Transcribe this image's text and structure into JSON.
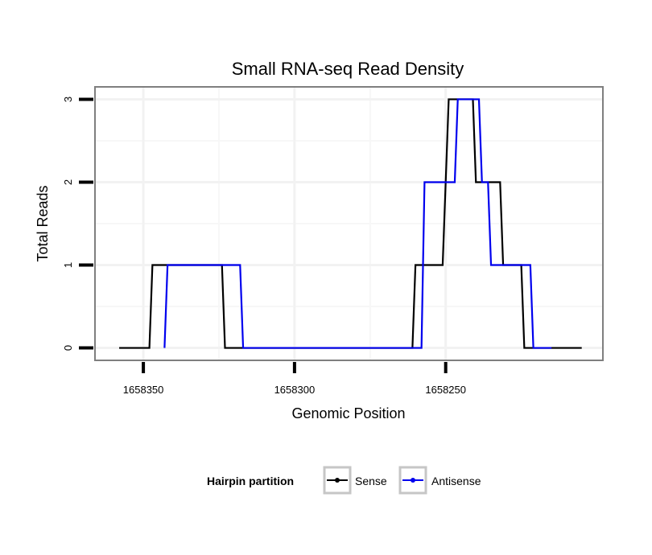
{
  "chart_data": {
    "type": "line",
    "step": true,
    "title": "Small RNA-seq Read Density",
    "xlabel": "Genomic Position",
    "ylabel": "Total Reads",
    "x_reversed": true,
    "xlim": [
      1658366,
      1658198
    ],
    "ylim": [
      -0.15,
      3.15
    ],
    "x_ticks": [
      1658350,
      1658300,
      1658250
    ],
    "x_tick_labels": [
      "1658350",
      "1658300",
      "1658250"
    ],
    "y_ticks": [
      0,
      1,
      2,
      3
    ],
    "y_tick_labels": [
      "0",
      "1",
      "2",
      "3"
    ],
    "grid": true,
    "legend": {
      "title": "Hairpin partition",
      "position": "bottom"
    },
    "series": [
      {
        "name": "Sense",
        "color": "#000000",
        "points": [
          [
            1658358,
            0
          ],
          [
            1658348,
            0
          ],
          [
            1658347,
            1
          ],
          [
            1658324,
            1
          ],
          [
            1658323,
            0
          ],
          [
            1658261,
            0
          ],
          [
            1658260,
            1
          ],
          [
            1658251,
            1
          ],
          [
            1658249,
            3
          ],
          [
            1658241,
            3
          ],
          [
            1658240,
            2
          ],
          [
            1658232,
            2
          ],
          [
            1658231,
            1
          ],
          [
            1658225,
            1
          ],
          [
            1658224,
            0
          ],
          [
            1658205,
            0
          ]
        ]
      },
      {
        "name": "Antisense",
        "color": "#0000ee",
        "points": [
          [
            1658343,
            0
          ],
          [
            1658342,
            1
          ],
          [
            1658318,
            1
          ],
          [
            1658317,
            0
          ],
          [
            1658258,
            0
          ],
          [
            1658257,
            2
          ],
          [
            1658247,
            2
          ],
          [
            1658246,
            3
          ],
          [
            1658239,
            3
          ],
          [
            1658238,
            2
          ],
          [
            1658236,
            2
          ],
          [
            1658235,
            1
          ],
          [
            1658222,
            1
          ],
          [
            1658221,
            0
          ],
          [
            1658215,
            0
          ]
        ]
      }
    ]
  }
}
